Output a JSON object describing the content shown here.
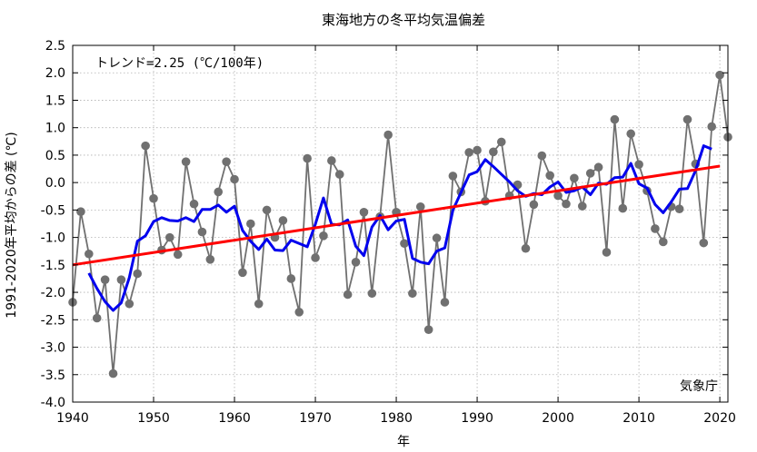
{
  "chart_data": {
    "type": "line",
    "title": "東海地方の冬平均気温偏差",
    "xlabel": "年",
    "ylabel": "1991-2020年平均からの差 (℃)",
    "annotation": "トレンド=2.25 (℃/100年)",
    "source_label": "気象庁",
    "xlim": [
      1940,
      2021
    ],
    "ylim": [
      -4.0,
      2.5
    ],
    "xticks": [
      1940,
      1950,
      1960,
      1970,
      1980,
      1990,
      2000,
      2010,
      2020
    ],
    "yticks": [
      2.5,
      2.0,
      1.5,
      1.0,
      0.5,
      0.0,
      -0.5,
      -1.0,
      -1.5,
      -2.0,
      -2.5,
      -3.0,
      -3.5,
      -4.0
    ],
    "ytick_labels": [
      "2.5",
      "2.0",
      "1.5",
      "1.0",
      "0.5",
      "0.0",
      "-0.5",
      "-1.0",
      "-1.5",
      "-2.0",
      "-2.5",
      "-3.0",
      "-3.5",
      "-4.0"
    ],
    "grid": true,
    "series": [
      {
        "style": "line-with-markers",
        "color": "#707070",
        "x": [
          1940,
          1941,
          1942,
          1943,
          1944,
          1945,
          1946,
          1947,
          1948,
          1949,
          1950,
          1951,
          1952,
          1953,
          1954,
          1955,
          1956,
          1957,
          1958,
          1959,
          1960,
          1961,
          1962,
          1963,
          1964,
          1965,
          1966,
          1967,
          1968,
          1969,
          1970,
          1971,
          1972,
          1973,
          1974,
          1975,
          1976,
          1977,
          1978,
          1979,
          1980,
          1981,
          1982,
          1983,
          1984,
          1985,
          1986,
          1987,
          1988,
          1989,
          1990,
          1991,
          1992,
          1993,
          1994,
          1995,
          1996,
          1997,
          1998,
          1999,
          2000,
          2001,
          2002,
          2003,
          2004,
          2005,
          2006,
          2007,
          2008,
          2009,
          2010,
          2011,
          2012,
          2013,
          2014,
          2015,
          2016,
          2017,
          2018,
          2019,
          2020,
          2021
        ],
        "values": [
          -2.18,
          -0.53,
          -1.3,
          -2.47,
          -1.77,
          -3.48,
          -1.77,
          -2.21,
          -1.66,
          0.67,
          -0.29,
          -1.23,
          -1.0,
          -1.31,
          0.38,
          -0.39,
          -0.9,
          -1.4,
          -0.17,
          0.38,
          0.06,
          -1.64,
          -0.75,
          -2.21,
          -0.5,
          -1.0,
          -0.69,
          -1.75,
          -2.36,
          0.44,
          -1.37,
          -0.97,
          0.4,
          0.15,
          -2.04,
          -1.45,
          -0.54,
          -2.02,
          -0.62,
          0.87,
          -0.54,
          -1.11,
          -2.02,
          -0.44,
          -2.68,
          -1.01,
          -2.18,
          0.12,
          -0.17,
          0.55,
          0.59,
          -0.34,
          0.56,
          0.74,
          -0.24,
          -0.04,
          -1.2,
          -0.4,
          0.49,
          0.13,
          -0.24,
          -0.39,
          0.08,
          -0.43,
          0.17,
          0.28,
          -1.27,
          1.15,
          -0.47,
          0.89,
          0.33,
          -0.15,
          -0.84,
          -1.08,
          -0.44,
          -0.48,
          1.15,
          0.34,
          -1.1,
          1.02,
          1.96,
          0.83
        ]
      },
      {
        "style": "line",
        "color": "#0000ee",
        "x": [
          1942,
          1943,
          1944,
          1945,
          1946,
          1947,
          1948,
          1949,
          1950,
          1951,
          1952,
          1953,
          1954,
          1955,
          1956,
          1957,
          1958,
          1959,
          1960,
          1961,
          1962,
          1963,
          1964,
          1965,
          1966,
          1967,
          1968,
          1969,
          1970,
          1971,
          1972,
          1973,
          1974,
          1975,
          1976,
          1977,
          1978,
          1979,
          1980,
          1981,
          1982,
          1983,
          1984,
          1985,
          1986,
          1987,
          1988,
          1989,
          1990,
          1991,
          1992,
          1993,
          1994,
          1995,
          1996,
          1997,
          1998,
          1999,
          2000,
          2001,
          2002,
          2003,
          2004,
          2005,
          2006,
          2007,
          2008,
          2009,
          2010,
          2011,
          2012,
          2013,
          2014,
          2015,
          2016,
          2017,
          2018,
          2019
        ],
        "values": [
          -1.65,
          -1.93,
          -2.17,
          -2.33,
          -2.19,
          -1.73,
          -1.07,
          -0.97,
          -0.71,
          -0.64,
          -0.69,
          -0.7,
          -0.64,
          -0.71,
          -0.49,
          -0.49,
          -0.41,
          -0.54,
          -0.43,
          -0.87,
          -1.07,
          -1.22,
          -1.03,
          -1.23,
          -1.24,
          -1.05,
          -1.11,
          -1.17,
          -0.76,
          -0.28,
          -0.76,
          -0.77,
          -0.68,
          -1.16,
          -1.33,
          -0.81,
          -0.6,
          -0.86,
          -0.7,
          -0.67,
          -1.38,
          -1.45,
          -1.48,
          -1.25,
          -1.19,
          -0.5,
          -0.18,
          0.14,
          0.2,
          0.42,
          0.29,
          0.15,
          0.01,
          -0.15,
          -0.25,
          -0.2,
          -0.22,
          -0.08,
          0.01,
          -0.18,
          -0.15,
          -0.08,
          -0.22,
          -0.01,
          -0.03,
          0.09,
          0.1,
          0.35,
          -0.02,
          -0.1,
          -0.4,
          -0.55,
          -0.35,
          -0.12,
          -0.11,
          0.22,
          0.67,
          0.61
        ]
      },
      {
        "style": "trend",
        "color": "#ff0000",
        "x": [
          1940,
          2020
        ],
        "values": [
          -1.5,
          0.3
        ]
      }
    ]
  }
}
